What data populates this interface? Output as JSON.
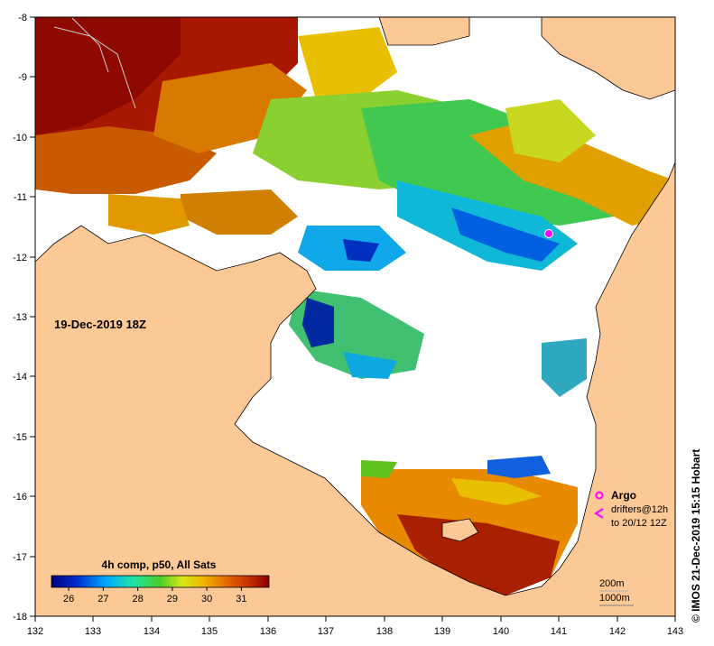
{
  "map": {
    "date_label": "19-Dec-2019 18Z",
    "credit": "© IMOS 21-Dec-2019 15:15 Hobart",
    "x_ticks": [
      "132",
      "133",
      "134",
      "135",
      "136",
      "137",
      "138",
      "139",
      "140",
      "141",
      "142",
      "143"
    ],
    "y_ticks": [
      "-8",
      "-9",
      "-10",
      "-11",
      "-12",
      "-13",
      "-14",
      "-15",
      "-16",
      "-17",
      "-18"
    ],
    "colors": {
      "land": "#fcc896",
      "nodata": "#ffffff",
      "argo": "#ff00ff"
    }
  },
  "colorbar": {
    "title": "4h comp, p50, All Sats",
    "ticks": [
      "26",
      "27",
      "28",
      "29",
      "30",
      "31"
    ],
    "min": 25.5,
    "max": 31.8
  },
  "legend": {
    "argo_label": "Argo",
    "drifter_line1": "drifters@12h",
    "drifter_line2": "to 20/12 12Z",
    "depth_200": "200m",
    "depth_1000": "1000m"
  }
}
